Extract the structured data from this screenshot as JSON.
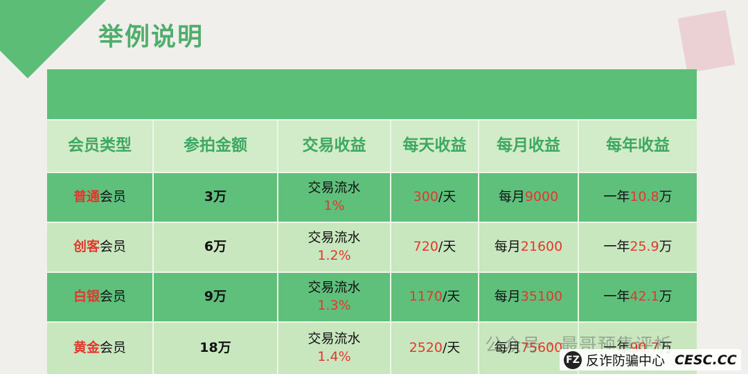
{
  "title": "举例说明",
  "table": {
    "headers": [
      "会员类型",
      "参拍金额",
      "交易收益",
      "每天收益",
      "每月收益",
      "每年收益"
    ],
    "rows": [
      {
        "type_red": "普通",
        "type_rest": "会员",
        "amount": "3万",
        "income_label": "交易流水",
        "income_rate": "1%",
        "daily_value": "300",
        "daily_unit": "/天",
        "monthly_prefix": "每月",
        "monthly_value": "9000",
        "yearly_prefix": "一年",
        "yearly_value": "10.8",
        "yearly_unit": "万"
      },
      {
        "type_red": "创客",
        "type_rest": "会员",
        "amount": "6万",
        "income_label": "交易流水",
        "income_rate": "1.2%",
        "daily_value": "720",
        "daily_unit": "/天",
        "monthly_prefix": "每月",
        "monthly_value": "21600",
        "yearly_prefix": "一年",
        "yearly_value": "25.9",
        "yearly_unit": "万"
      },
      {
        "type_red": "白银",
        "type_rest": "会员",
        "amount": "9万",
        "income_label": "交易流水",
        "income_rate": "1.3%",
        "daily_value": "1170",
        "daily_unit": "/天",
        "monthly_prefix": "每月",
        "monthly_value": "35100",
        "yearly_prefix": "一年",
        "yearly_value": "42.1",
        "yearly_unit": "万"
      },
      {
        "type_red": "黄金",
        "type_rest": "会员",
        "amount": "18万",
        "income_label": "交易流水",
        "income_rate": "1.4%",
        "daily_value": "2520",
        "daily_unit": "/天",
        "monthly_prefix": "每月",
        "monthly_value": "75600",
        "yearly_prefix": "一年",
        "yearly_value": "90.7",
        "yearly_unit": "万"
      }
    ]
  },
  "watermark": "公众号 · 最哥预售评析",
  "logo": {
    "text": "反诈防骗中心",
    "domain": "CESC.CC",
    "icon": "fz-logo-icon"
  },
  "colors": {
    "green": "#5bbf78",
    "light_green": "#c8e7bf",
    "red": "#e3372d",
    "title_green": "#4fae6c"
  }
}
